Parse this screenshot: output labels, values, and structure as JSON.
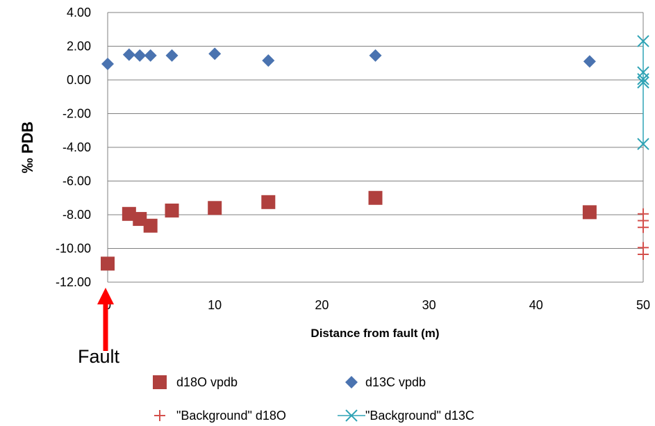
{
  "chart_data": {
    "type": "scatter",
    "xlabel": "Distance from fault (m)",
    "ylabel": "‰ PDB",
    "xlim": [
      0,
      50
    ],
    "ylim": [
      -12,
      4
    ],
    "x_ticks": [
      "0",
      "10",
      "20",
      "30",
      "40",
      "50"
    ],
    "y_ticks": [
      "-12.00",
      "-10.00",
      "-8.00",
      "-6.00",
      "-4.00",
      "-2.00",
      "0.00",
      "2.00",
      "4.00"
    ],
    "grid": "horizontal",
    "legend_position": "bottom",
    "annotation": "Fault",
    "colors": {
      "d18O": "#b0403e",
      "d13C": "#4a73b0",
      "bg_d18O": "#d4504c",
      "bg_d13C": "#2ea3b5",
      "arrow": "#ff0000",
      "grid": "#808080"
    },
    "series": [
      {
        "name": "d18O vpdb",
        "marker": "square",
        "x": [
          0,
          2,
          3,
          4,
          6,
          10,
          15,
          25,
          45
        ],
        "y": [
          -10.9,
          -7.95,
          -8.25,
          -8.65,
          -7.75,
          -7.6,
          -7.25,
          -7.0,
          -7.85
        ]
      },
      {
        "name": "d13C vpdb",
        "marker": "diamond",
        "x": [
          0,
          2,
          3,
          4,
          6,
          10,
          15,
          25,
          45
        ],
        "y": [
          0.95,
          1.5,
          1.45,
          1.45,
          1.45,
          1.55,
          1.15,
          1.45,
          1.1
        ]
      },
      {
        "name": "\"Background\" d18O",
        "marker": "plus",
        "x": [
          50,
          50,
          50,
          50,
          50
        ],
        "y": [
          -7.95,
          -8.35,
          -8.75,
          -9.95,
          -10.35
        ]
      },
      {
        "name": "\"Background\" d13C",
        "marker": "x",
        "x": [
          50,
          50,
          50,
          50,
          50
        ],
        "y": [
          2.3,
          0.45,
          0.05,
          -0.15,
          -3.8
        ]
      }
    ]
  }
}
